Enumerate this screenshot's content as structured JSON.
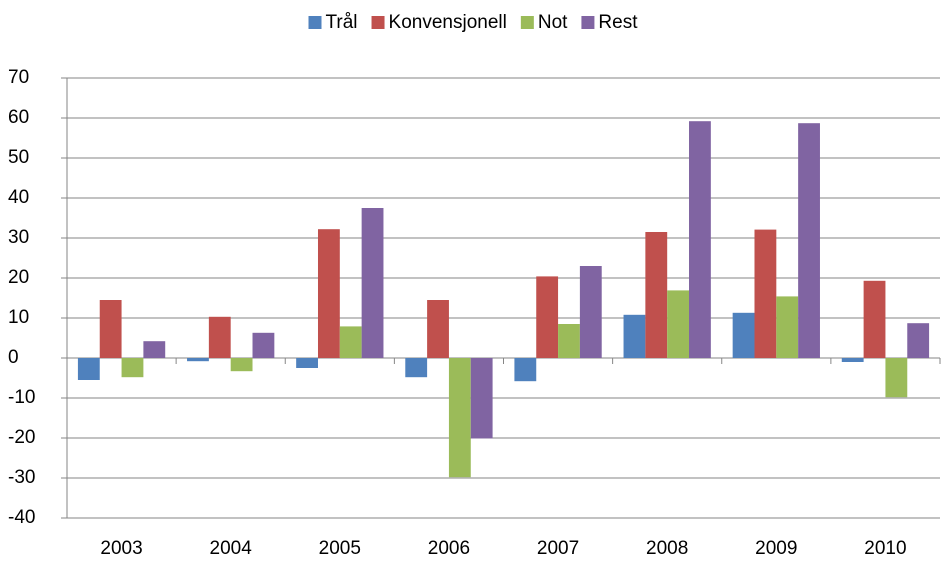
{
  "chart_data": {
    "type": "bar",
    "categories": [
      "2003",
      "2004",
      "2005",
      "2006",
      "2007",
      "2008",
      "2009",
      "2010"
    ],
    "series": [
      {
        "name": "Trål",
        "color": "#4f81bd",
        "values": [
          -5.5,
          -0.8,
          -2.5,
          -4.8,
          -5.8,
          10.8,
          11.3,
          -1.0
        ]
      },
      {
        "name": "Konvensjonell",
        "color": "#c0504d",
        "values": [
          14.5,
          10.3,
          32.2,
          14.5,
          20.4,
          31.5,
          32.1,
          19.3
        ]
      },
      {
        "name": "Not",
        "color": "#9bbb59",
        "values": [
          -4.8,
          -3.3,
          7.9,
          -29.8,
          8.5,
          16.9,
          15.4,
          -9.8
        ]
      },
      {
        "name": "Rest",
        "color": "#8064a2",
        "values": [
          4.2,
          6.3,
          37.5,
          -20.1,
          23.0,
          59.2,
          58.7,
          8.7
        ]
      }
    ],
    "ylim": [
      -40,
      70
    ],
    "yticks": [
      -40,
      -30,
      -20,
      -10,
      0,
      10,
      20,
      30,
      40,
      50,
      60,
      70
    ],
    "grid": true,
    "legend": "top"
  }
}
